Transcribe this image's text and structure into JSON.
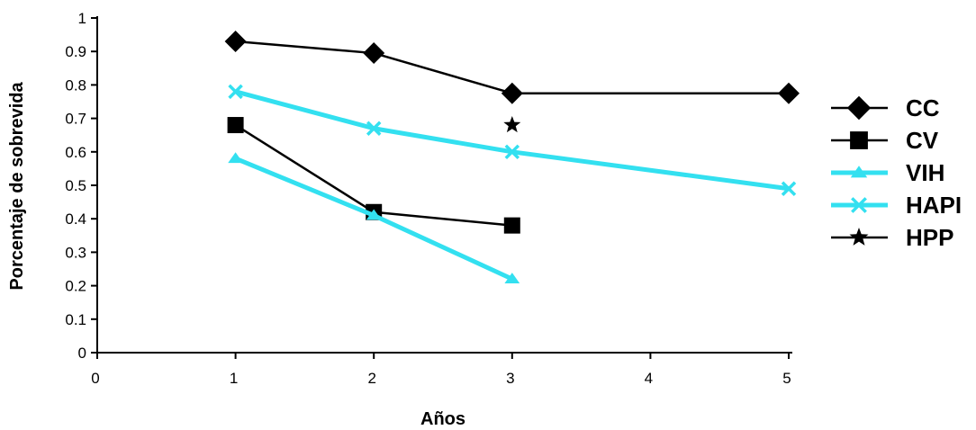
{
  "chart_data": {
    "type": "line",
    "xlabel": "Años",
    "ylabel": "Porcentaje de sobrevida",
    "xlim": [
      0,
      5
    ],
    "ylim": [
      0,
      1
    ],
    "x_ticks": [
      "0",
      "1",
      "2",
      "3",
      "4",
      "5"
    ],
    "y_ticks": [
      "0",
      "0.1",
      "0.2",
      "0.3",
      "0.4",
      "0.5",
      "0.6",
      "0.7",
      "0.8",
      "0.9",
      "1"
    ],
    "grid": false,
    "legend_position": "right",
    "series": [
      {
        "name": "CC",
        "color": "#000000",
        "marker": "diamond",
        "line": true,
        "points": [
          [
            1,
            0.93
          ],
          [
            2,
            0.895
          ],
          [
            3,
            0.775
          ],
          [
            5,
            0.775
          ]
        ]
      },
      {
        "name": "CV",
        "color": "#000000",
        "marker": "square",
        "line": true,
        "points": [
          [
            1,
            0.68
          ],
          [
            2,
            0.42
          ],
          [
            3,
            0.38
          ]
        ]
      },
      {
        "name": "VIH",
        "color": "#33e0f0",
        "marker": "triangle",
        "line": true,
        "points": [
          [
            1,
            0.58
          ],
          [
            2,
            0.41
          ],
          [
            3,
            0.22
          ]
        ]
      },
      {
        "name": "HAPI",
        "color": "#33e0f0",
        "marker": "x",
        "line": true,
        "points": [
          [
            1,
            0.78
          ],
          [
            2,
            0.67
          ],
          [
            3,
            0.6
          ],
          [
            5,
            0.49
          ]
        ]
      },
      {
        "name": "HPP",
        "color": "#000000",
        "marker": "star",
        "line": false,
        "points": [
          [
            3,
            0.68
          ]
        ]
      }
    ]
  }
}
